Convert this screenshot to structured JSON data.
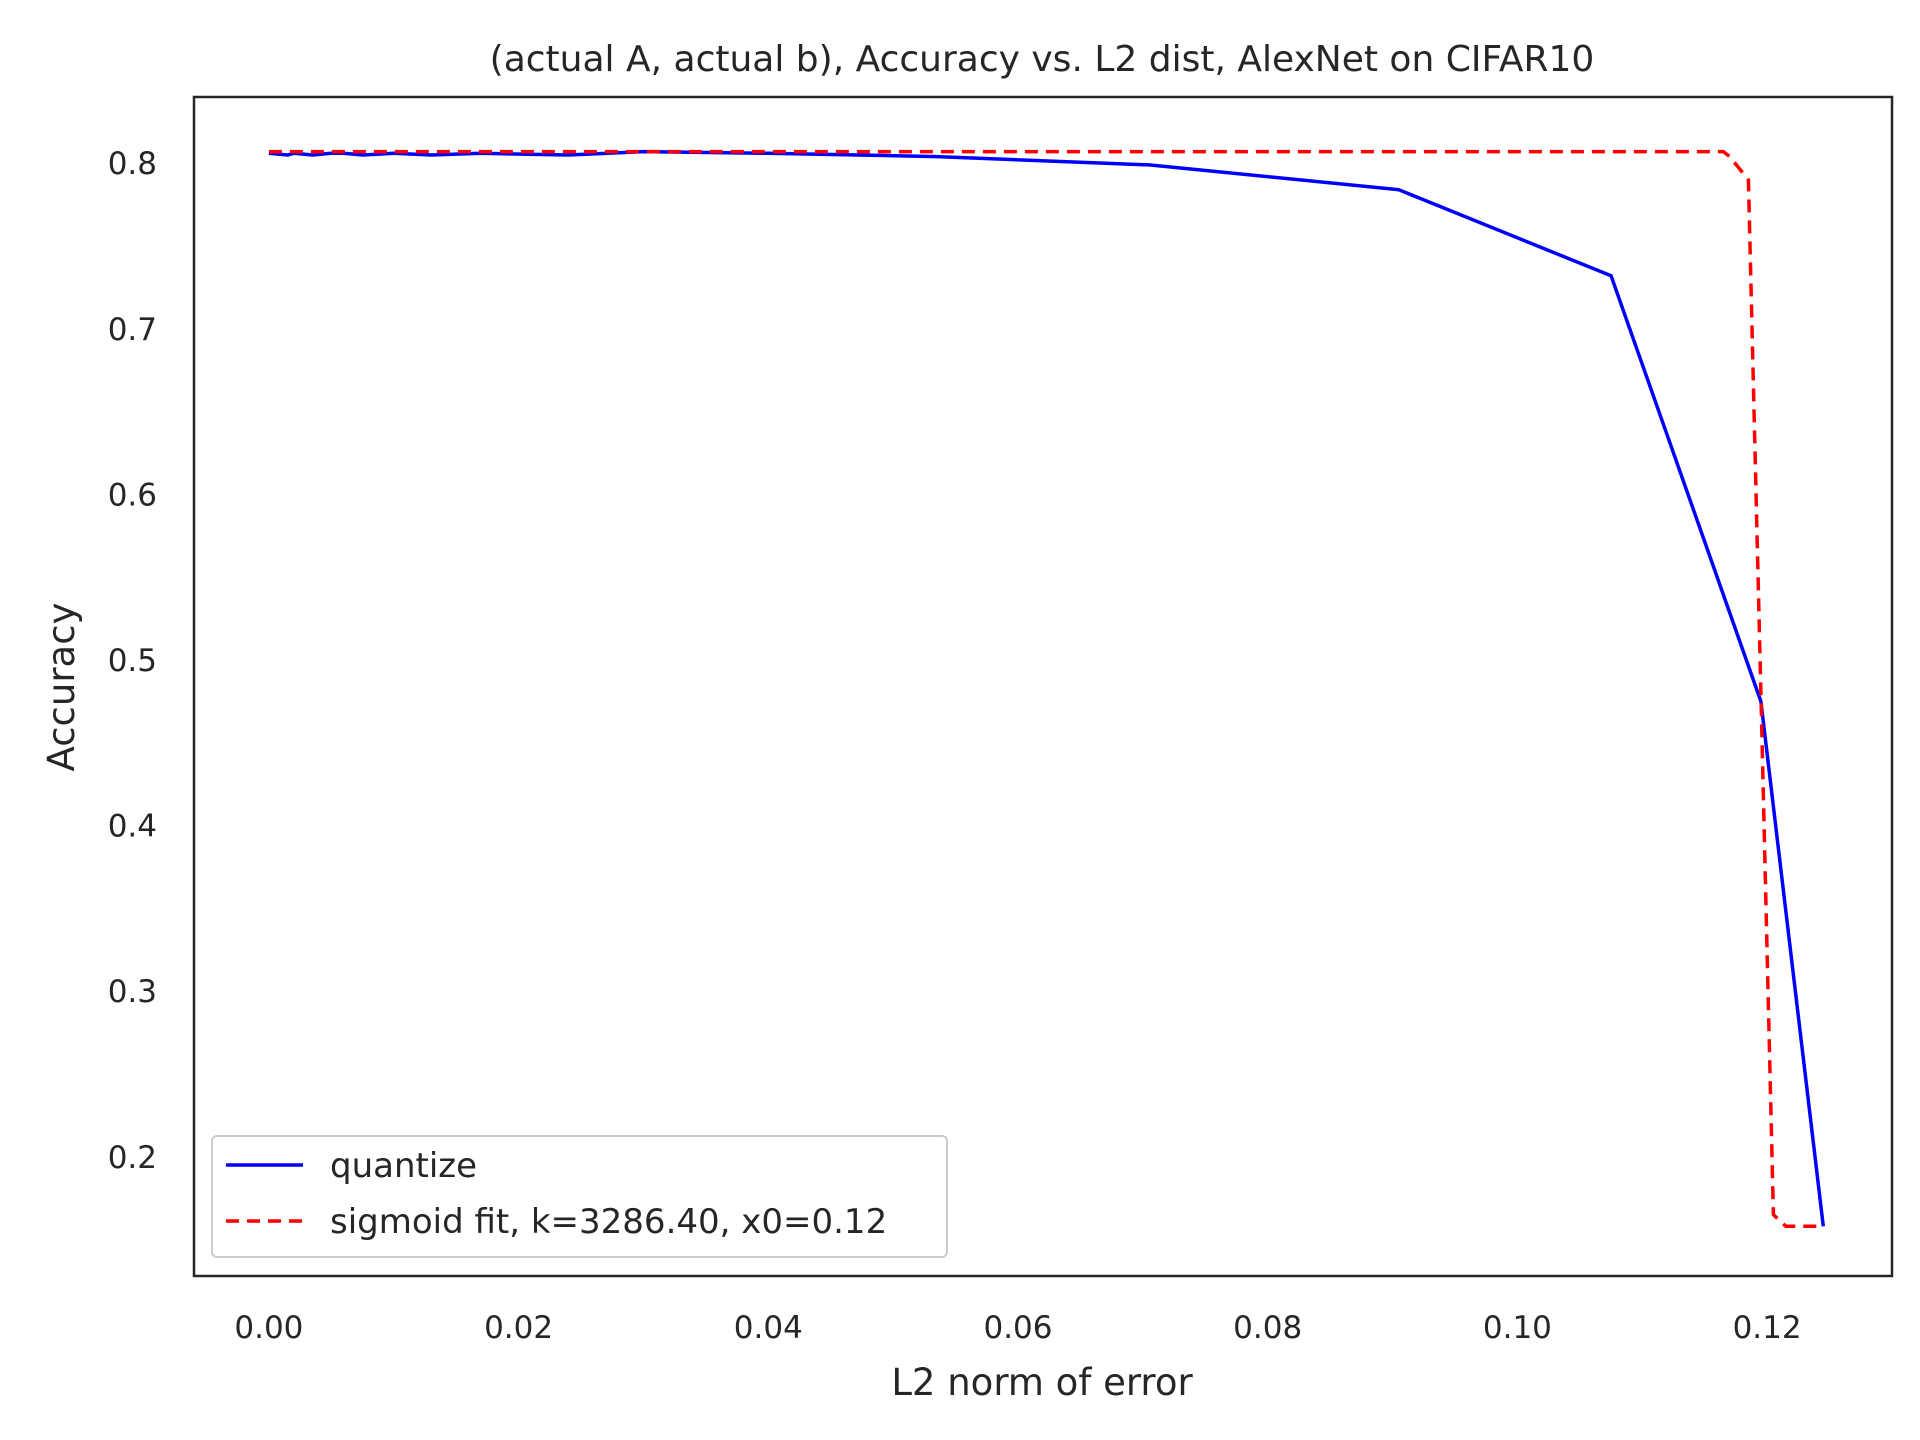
{
  "chart_data": {
    "type": "line",
    "title": "(actual A, actual b), Accuracy vs. L2 dist, AlexNet on CIFAR10",
    "xlabel": "L2 norm of error",
    "ylabel": "Accuracy",
    "xlim": [
      -0.006,
      0.13
    ],
    "ylim": [
      0.128,
      0.84
    ],
    "xticks": [
      0.0,
      0.02,
      0.04,
      0.06,
      0.08,
      0.1,
      0.12
    ],
    "xtick_labels": [
      "0.00",
      "0.02",
      "0.04",
      "0.06",
      "0.08",
      "0.10",
      "0.12"
    ],
    "yticks": [
      0.2,
      0.3,
      0.4,
      0.5,
      0.6,
      0.7,
      0.8
    ],
    "ytick_labels": [
      "0.2",
      "0.3",
      "0.4",
      "0.5",
      "0.6",
      "0.7",
      "0.8"
    ],
    "grid": false,
    "legend_position": "lower-left",
    "series": [
      {
        "name": "quantize",
        "color": "#0000ff",
        "style": "solid",
        "x": [
          0.0,
          0.0015,
          0.002,
          0.0035,
          0.005,
          0.006,
          0.0075,
          0.01,
          0.013,
          0.017,
          0.024,
          0.03,
          0.04,
          0.0535,
          0.0705,
          0.0905,
          0.1075,
          0.1195,
          0.1245
        ],
        "y": [
          0.806,
          0.805,
          0.806,
          0.805,
          0.806,
          0.806,
          0.805,
          0.806,
          0.805,
          0.806,
          0.805,
          0.807,
          0.806,
          0.804,
          0.799,
          0.784,
          0.732,
          0.475,
          0.158
        ]
      },
      {
        "name": "sigmoid fit, k=3286.40, x0=0.12",
        "color": "#ff0000",
        "style": "dashed",
        "x": [
          0.0,
          0.02,
          0.04,
          0.06,
          0.08,
          0.1,
          0.11,
          0.1165,
          0.117,
          0.1185,
          0.1195,
          0.1205,
          0.1215,
          0.1245
        ],
        "y": [
          0.807,
          0.807,
          0.807,
          0.807,
          0.807,
          0.807,
          0.807,
          0.807,
          0.804,
          0.79,
          0.48,
          0.165,
          0.158,
          0.158
        ]
      }
    ]
  },
  "colors": {
    "axis_frame": "#262626",
    "legend_border": "#cccccc",
    "background": "#ffffff"
  }
}
